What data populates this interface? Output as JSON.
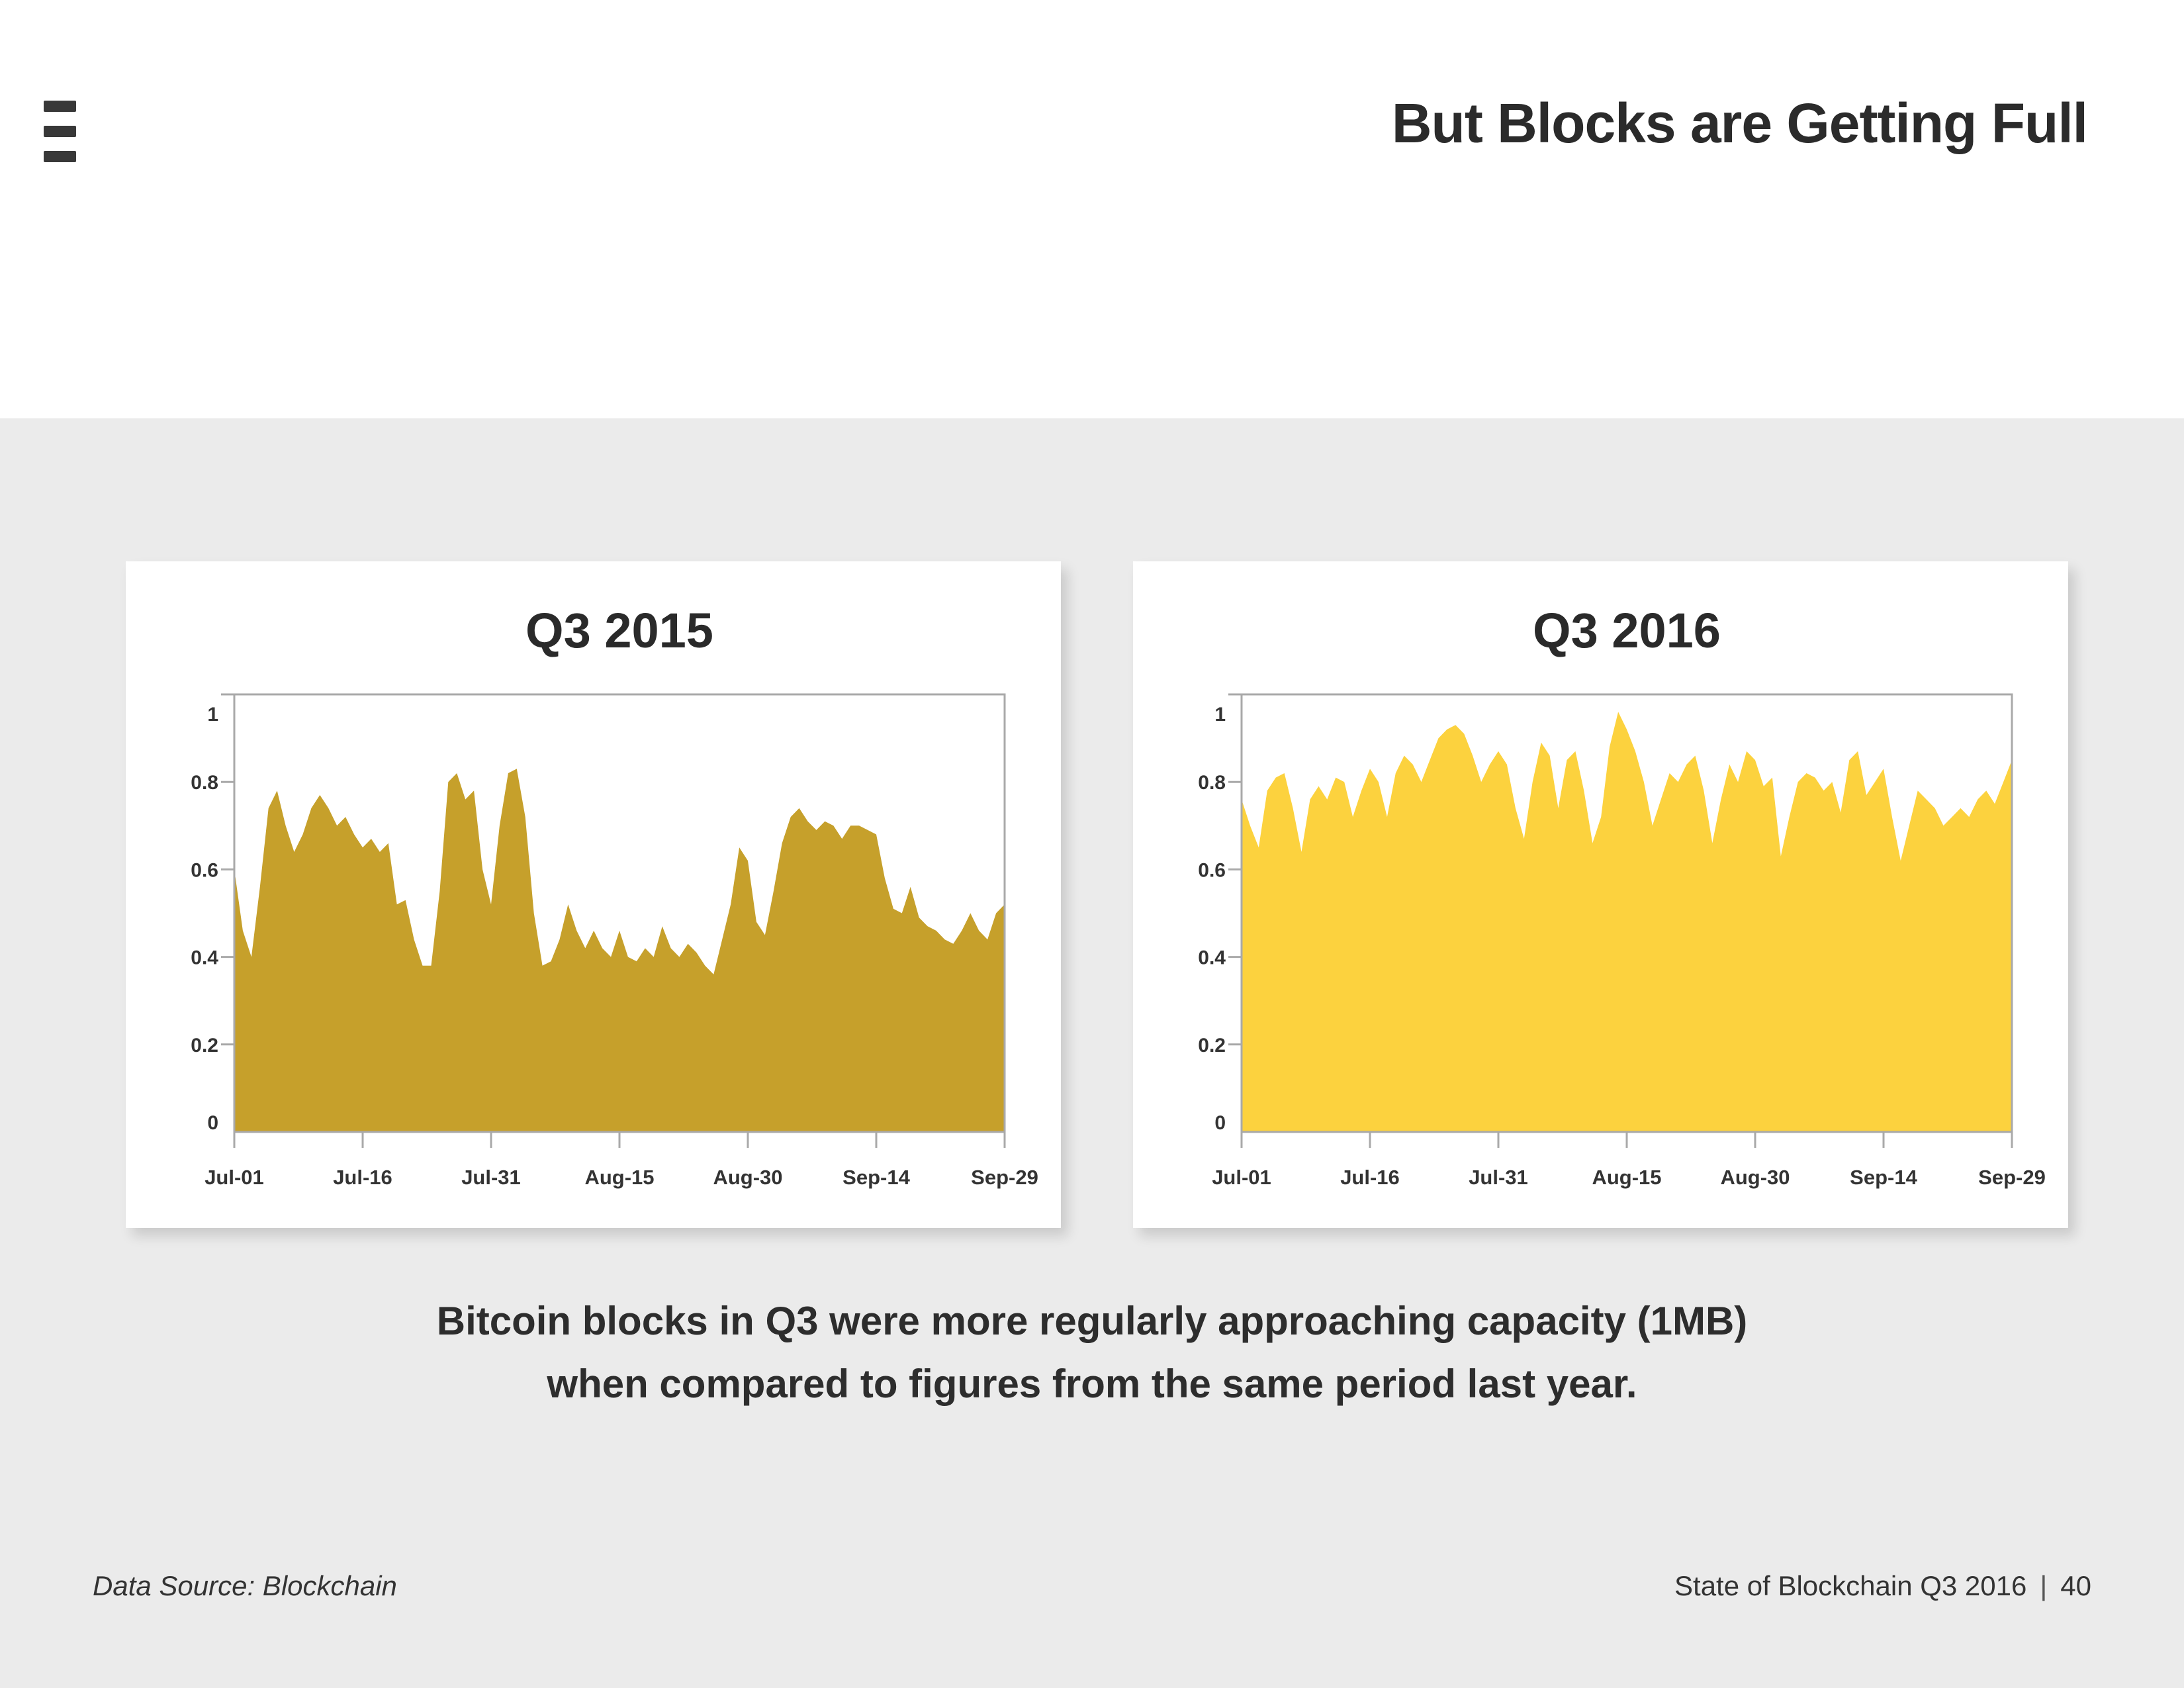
{
  "page": {
    "background_color": "#ffffff",
    "panel_color": "#ebebeb",
    "text_color": "#2b2b2b"
  },
  "header": {
    "title": "But Blocks are Getting Full"
  },
  "caption": {
    "line1": "Bitcoin blocks in Q3 were more regularly approaching capacity (1MB)",
    "line2": "when compared to figures from the same period last year."
  },
  "footer": {
    "source": "Data Source: Blockchain",
    "report": "State of Blockchain Q3 2016",
    "separator": "|",
    "page_number": "40"
  },
  "chart_data": [
    {
      "id": "q3-2015",
      "type": "area",
      "title": "Q3 2015",
      "color": "#c6a02b",
      "axis_color": "#a9a9a9",
      "ylim": [
        0,
        1
      ],
      "grid": false,
      "legend": false,
      "x_unit": "daily, Jul-01 through Sep-29 2015",
      "x_tick_days": [
        0,
        15,
        30,
        45,
        60,
        75,
        90
      ],
      "x_tick_labels": [
        "Jul-01",
        "Jul-16",
        "Jul-31",
        "Aug-15",
        "Aug-30",
        "Sep-14",
        "Sep-29"
      ],
      "y_tick_values": [
        0,
        0.2,
        0.4,
        0.6,
        0.8,
        1
      ],
      "y_tick_labels": [
        "0",
        "0.2",
        "0.4",
        "0.6",
        "0.8",
        "1"
      ],
      "values": [
        0.6,
        0.46,
        0.4,
        0.56,
        0.74,
        0.78,
        0.7,
        0.64,
        0.68,
        0.74,
        0.77,
        0.74,
        0.7,
        0.72,
        0.68,
        0.65,
        0.67,
        0.64,
        0.66,
        0.52,
        0.53,
        0.44,
        0.38,
        0.38,
        0.55,
        0.8,
        0.82,
        0.76,
        0.78,
        0.6,
        0.52,
        0.7,
        0.82,
        0.83,
        0.72,
        0.5,
        0.38,
        0.39,
        0.44,
        0.52,
        0.46,
        0.42,
        0.46,
        0.42,
        0.4,
        0.46,
        0.4,
        0.39,
        0.42,
        0.4,
        0.47,
        0.42,
        0.4,
        0.43,
        0.41,
        0.38,
        0.36,
        0.44,
        0.52,
        0.65,
        0.62,
        0.48,
        0.45,
        0.55,
        0.66,
        0.72,
        0.74,
        0.71,
        0.69,
        0.71,
        0.7,
        0.67,
        0.7,
        0.7,
        0.69,
        0.68,
        0.58,
        0.51,
        0.5,
        0.56,
        0.49,
        0.47,
        0.46,
        0.44,
        0.43,
        0.46,
        0.5,
        0.46,
        0.44,
        0.5,
        0.52
      ]
    },
    {
      "id": "q3-2016",
      "type": "area",
      "title": "Q3 2016",
      "color": "#fcd23e",
      "axis_color": "#a9a9a9",
      "ylim": [
        0,
        1
      ],
      "grid": false,
      "legend": false,
      "x_unit": "daily, Jul-01 through Sep-29 2016",
      "x_tick_days": [
        0,
        15,
        30,
        45,
        60,
        75,
        90
      ],
      "x_tick_labels": [
        "Jul-01",
        "Jul-16",
        "Jul-31",
        "Aug-15",
        "Aug-30",
        "Sep-14",
        "Sep-29"
      ],
      "y_tick_values": [
        0,
        0.2,
        0.4,
        0.6,
        0.8,
        1
      ],
      "y_tick_labels": [
        "0",
        "0.2",
        "0.4",
        "0.6",
        "0.8",
        "1"
      ],
      "values": [
        0.76,
        0.7,
        0.65,
        0.78,
        0.81,
        0.82,
        0.74,
        0.64,
        0.76,
        0.79,
        0.76,
        0.81,
        0.8,
        0.72,
        0.78,
        0.83,
        0.8,
        0.72,
        0.82,
        0.86,
        0.84,
        0.8,
        0.85,
        0.9,
        0.92,
        0.93,
        0.91,
        0.86,
        0.8,
        0.84,
        0.87,
        0.84,
        0.74,
        0.67,
        0.8,
        0.89,
        0.86,
        0.74,
        0.85,
        0.87,
        0.78,
        0.66,
        0.72,
        0.88,
        0.96,
        0.92,
        0.87,
        0.8,
        0.7,
        0.76,
        0.82,
        0.8,
        0.84,
        0.86,
        0.78,
        0.66,
        0.76,
        0.84,
        0.8,
        0.87,
        0.85,
        0.79,
        0.81,
        0.63,
        0.72,
        0.8,
        0.82,
        0.81,
        0.78,
        0.8,
        0.73,
        0.85,
        0.87,
        0.77,
        0.8,
        0.83,
        0.72,
        0.62,
        0.7,
        0.78,
        0.76,
        0.74,
        0.7,
        0.72,
        0.74,
        0.72,
        0.76,
        0.78,
        0.75,
        0.8,
        0.85
      ]
    }
  ]
}
